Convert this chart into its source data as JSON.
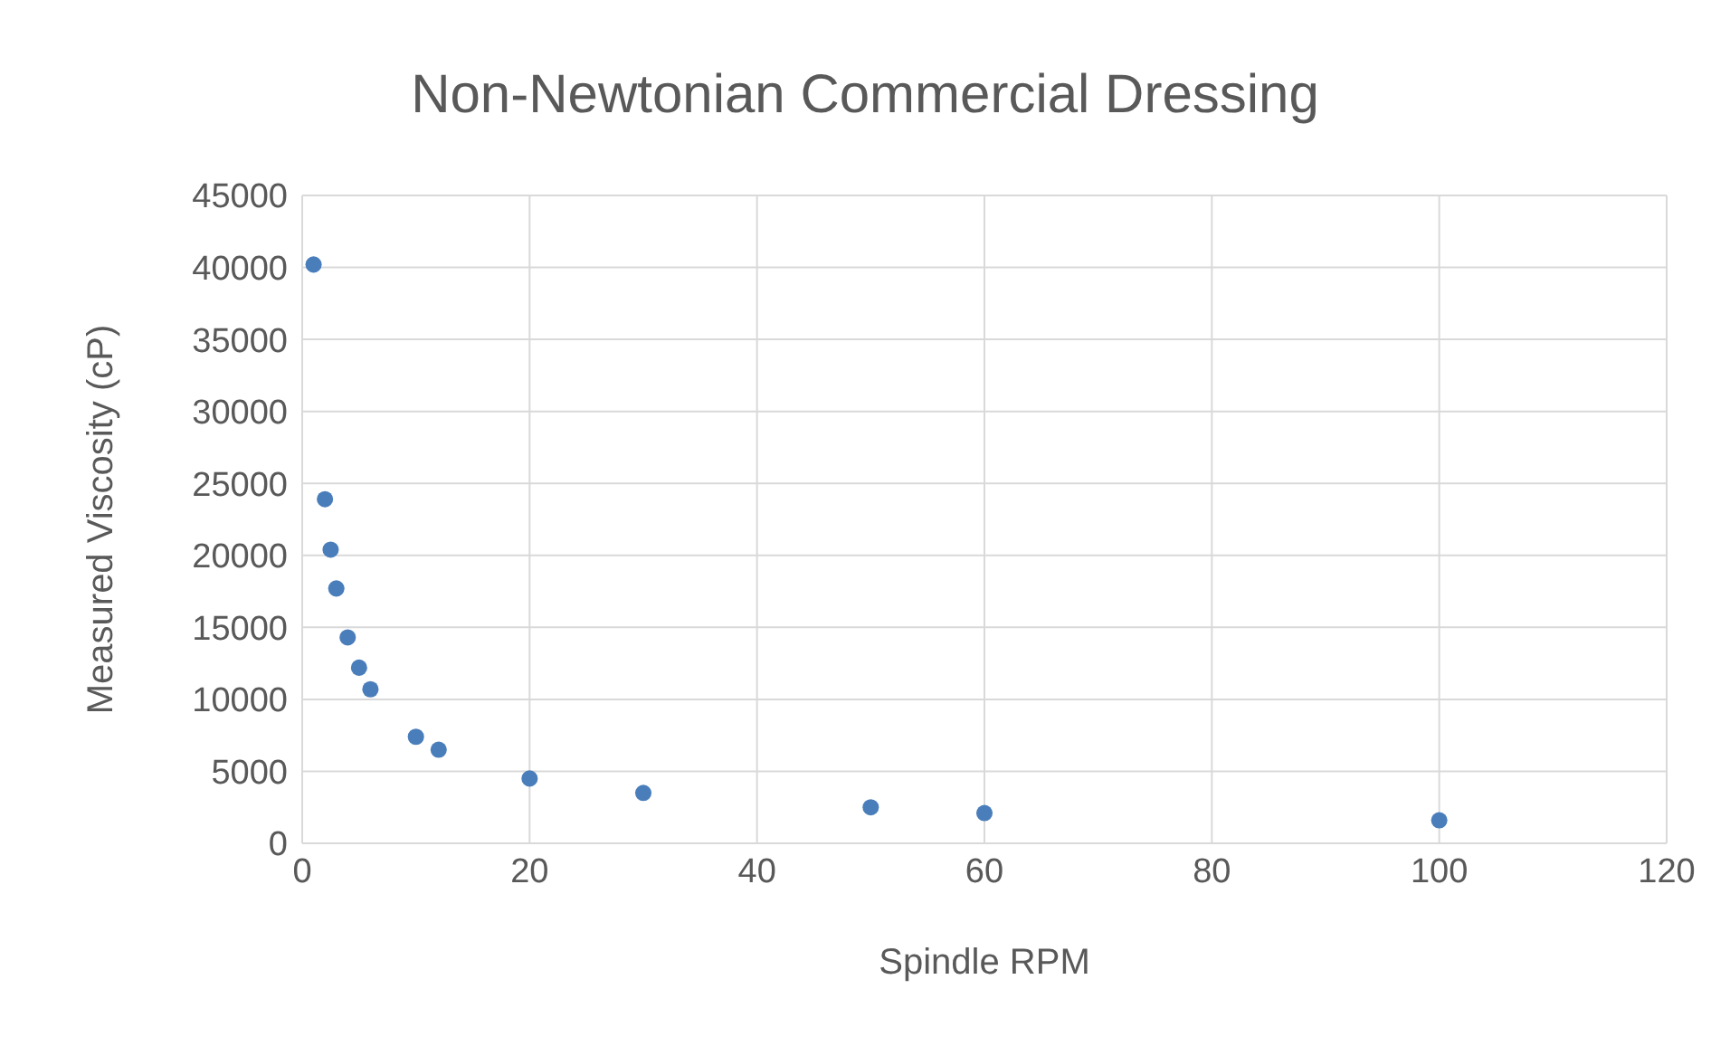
{
  "chart_data": {
    "type": "scatter",
    "title": "Non-Newtonian Commercial Dressing",
    "xlabel": "Spindle RPM",
    "ylabel": "Measured Viscosity (cP)",
    "x": [
      1,
      2,
      2.5,
      3,
      4,
      5,
      6,
      10,
      12,
      20,
      30,
      50,
      60,
      100
    ],
    "series": [
      {
        "color": "#4a7ebb",
        "values": [
          40200,
          23900,
          20400,
          17700,
          14300,
          12200,
          10700,
          7400,
          6500,
          4500,
          3500,
          2500,
          2100,
          1600
        ]
      }
    ],
    "xlim": [
      0,
      120
    ],
    "xticks": [
      0,
      20,
      40,
      60,
      80,
      100,
      120
    ],
    "ylim": [
      0,
      45000
    ],
    "yticks": [
      0,
      5000,
      10000,
      15000,
      20000,
      25000,
      30000,
      35000,
      40000,
      45000
    ],
    "grid": true,
    "marker": "circle",
    "legend": false
  }
}
